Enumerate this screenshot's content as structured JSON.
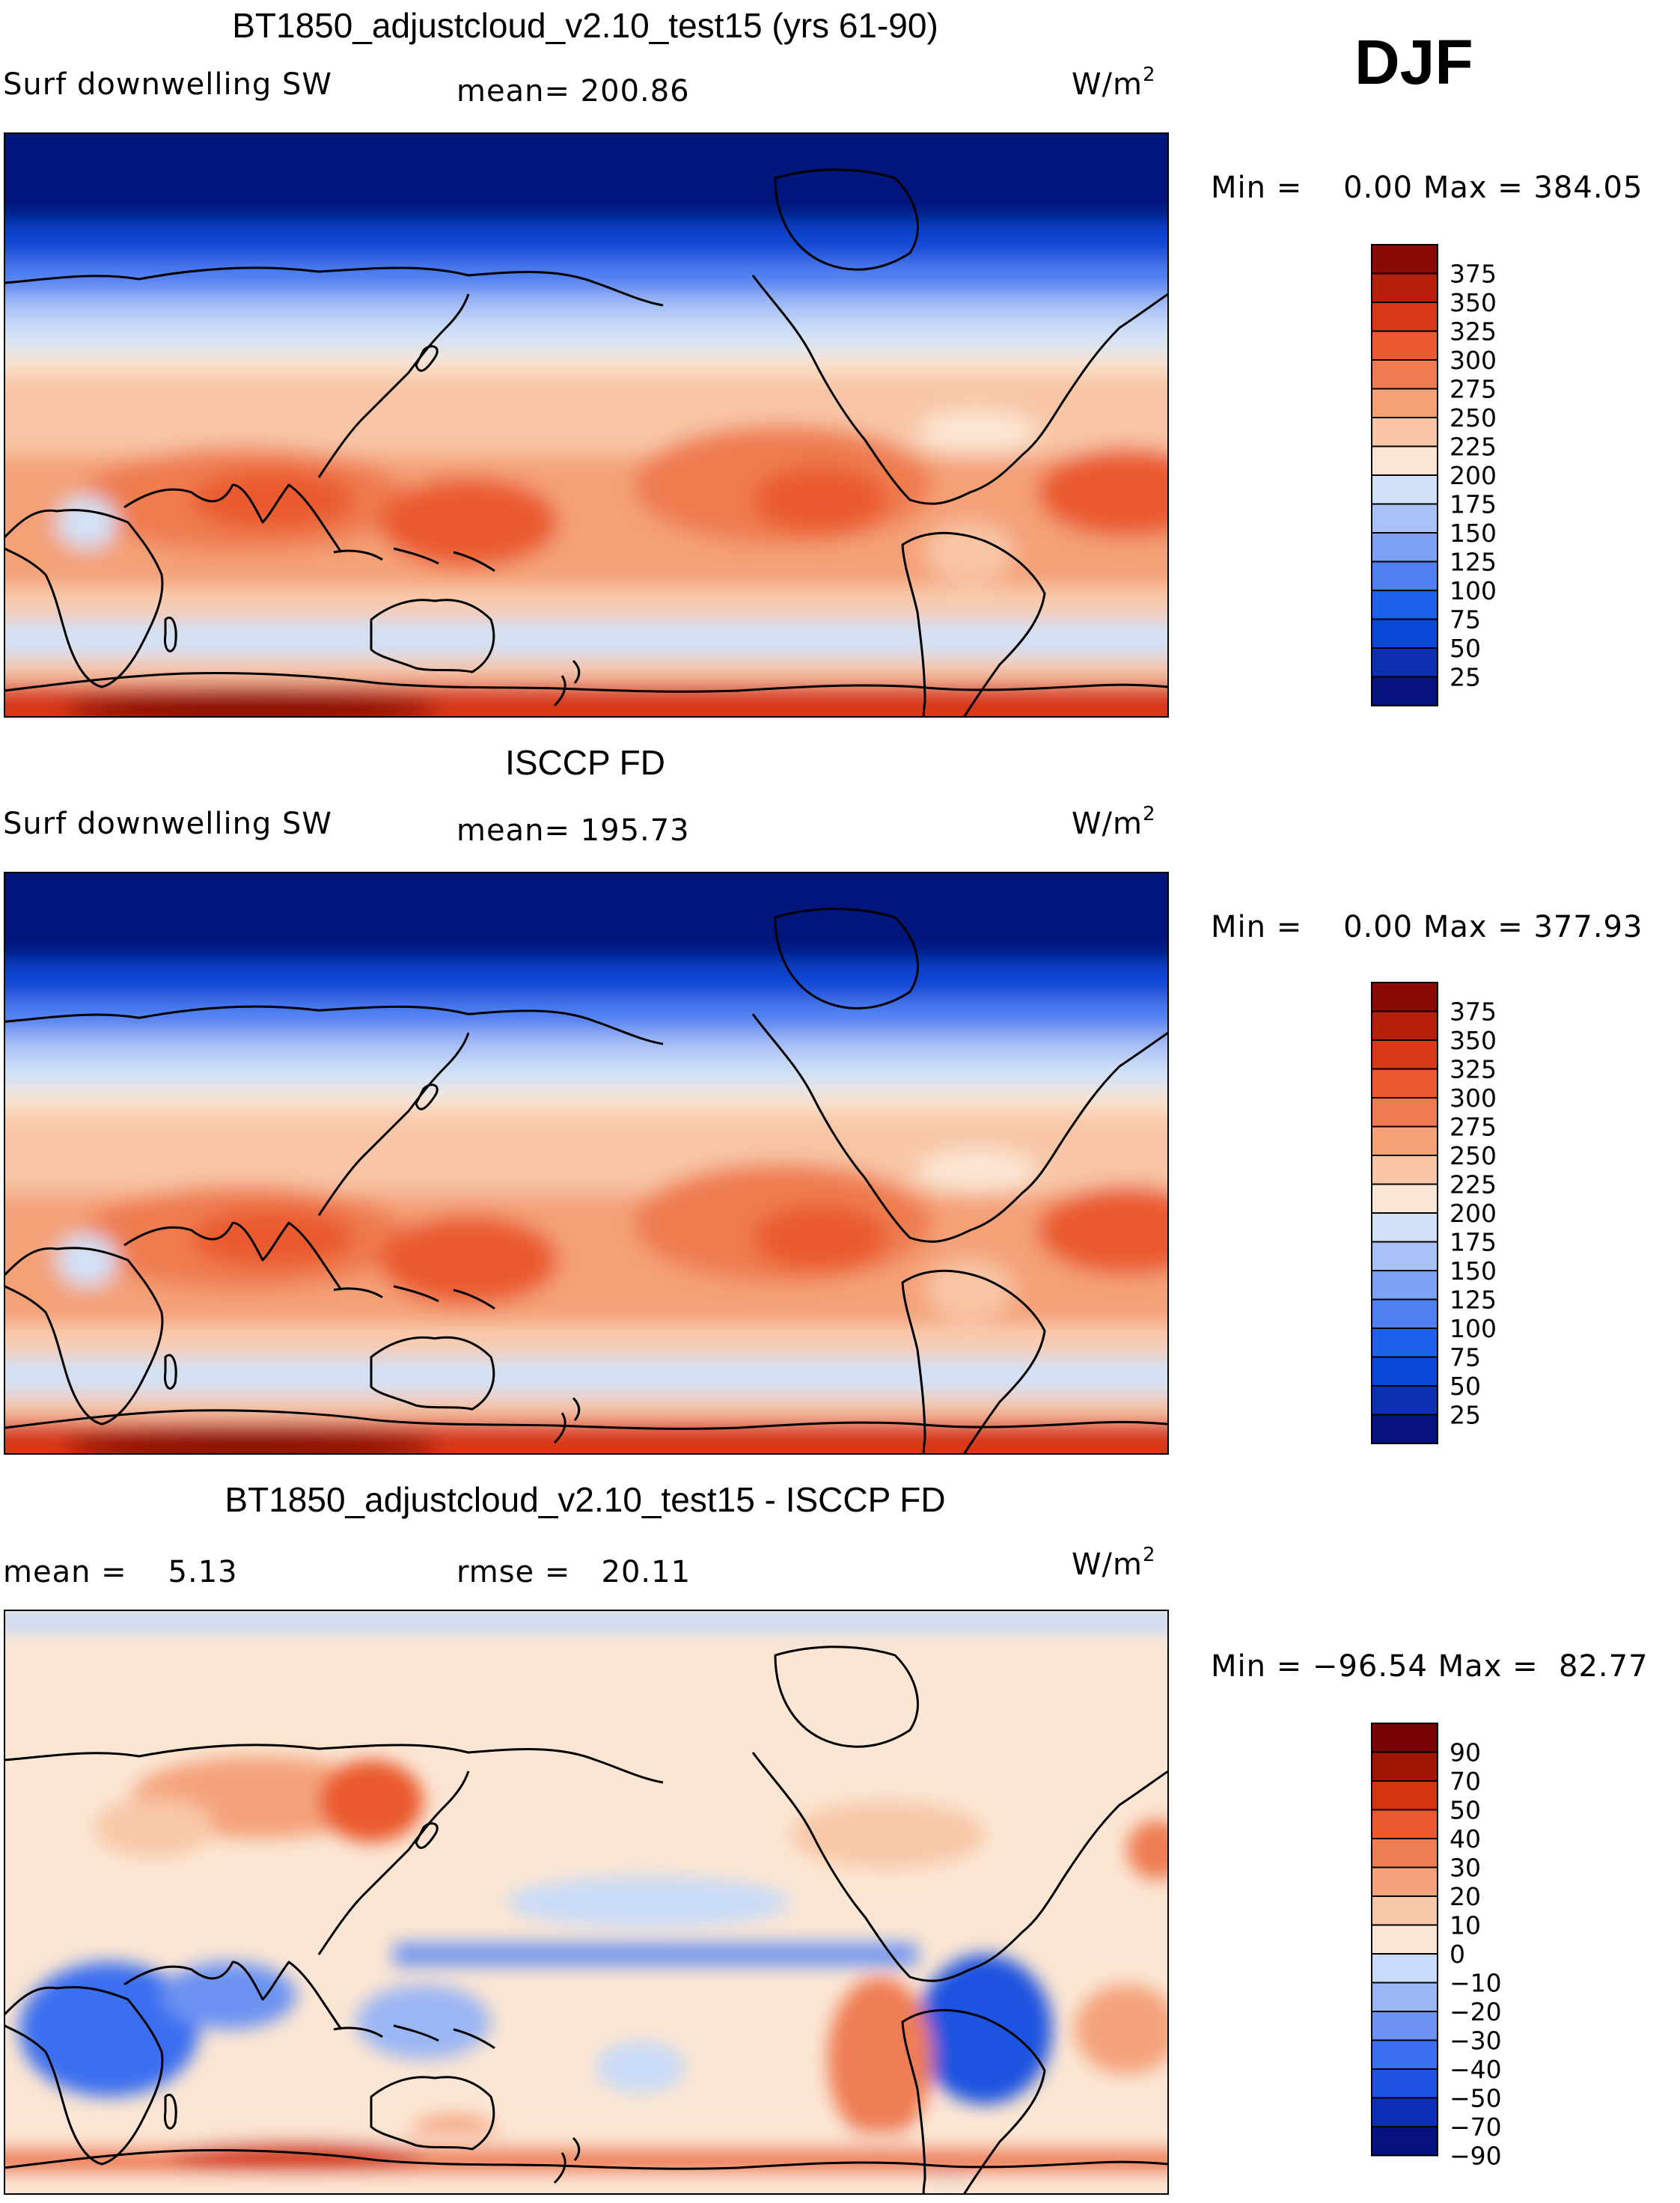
{
  "season": "DJF",
  "palettes": {
    "absolute": [
      "#06127d",
      "#0a2fb0",
      "#0b47d6",
      "#1f60ea",
      "#4f80f2",
      "#7da1f4",
      "#a9c1f6",
      "#d1e2f8",
      "#fbe6d3",
      "#f8c6a6",
      "#f4a178",
      "#ef7c50",
      "#ea5a2e",
      "#d83818",
      "#b81e0a",
      "#8a0b05"
    ],
    "difference": [
      "#06127d",
      "#0b2fb5",
      "#1f52e0",
      "#3b6ef0",
      "#6c93f2",
      "#9bb6f4",
      "#c9dbf8",
      "#fbe6d3",
      "#f8c8a8",
      "#f4a37b",
      "#ef7d52",
      "#ea5a2e",
      "#d4340f",
      "#a21505",
      "#7a0303"
    ]
  },
  "panels": [
    {
      "title": "BT1850_adjustcloud_v2.10_test15 (yrs 61-90)",
      "left_label": "Surf downwelling SW",
      "middle_label": "mean= 200.86",
      "units": "W/m",
      "units_exp": "2",
      "range_text": "Min =    0.00 Max = 384.05",
      "colorbar_ticks": [
        "375",
        "350",
        "325",
        "300",
        "275",
        "250",
        "225",
        "200",
        "175",
        "150",
        "125",
        "100",
        "75",
        "50",
        "25"
      ]
    },
    {
      "title": "ISCCP FD",
      "left_label": "Surf downwelling SW",
      "middle_label": "mean= 195.73",
      "units": "W/m",
      "units_exp": "2",
      "range_text": "Min =    0.00 Max = 377.93",
      "colorbar_ticks": [
        "375",
        "350",
        "325",
        "300",
        "275",
        "250",
        "225",
        "200",
        "175",
        "150",
        "125",
        "100",
        "75",
        "50",
        "25"
      ]
    },
    {
      "title": "BT1850_adjustcloud_v2.10_test15 - ISCCP FD",
      "left_label": "mean =    5.13",
      "middle_label": "rmse =   20.11",
      "units": "W/m",
      "units_exp": "2",
      "range_text": "Min = −96.54 Max =  82.77",
      "colorbar_ticks": [
        "90",
        "70",
        "50",
        "40",
        "30",
        "20",
        "10",
        "0",
        "−10",
        "−20",
        "−30",
        "−40",
        "−50",
        "−70",
        "−90"
      ]
    }
  ]
}
